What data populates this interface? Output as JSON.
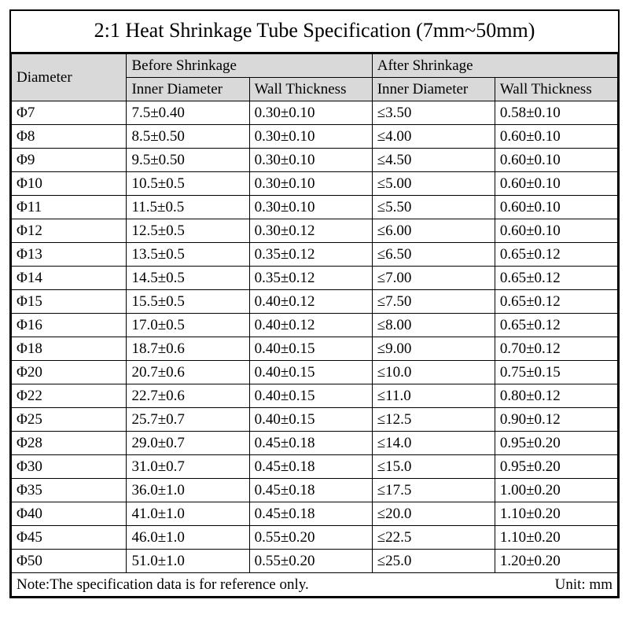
{
  "title": "2:1 Heat Shrinkage Tube Specification (7mm~50mm)",
  "headers": {
    "diameter": "Diameter",
    "before": "Before Shrinkage",
    "after": "After Shrinkage",
    "inner": "Inner Diameter",
    "wall": "Wall Thickness"
  },
  "note_left": "Note:The specification data is for reference only.",
  "note_right": "Unit: mm",
  "columns": [
    "diameter",
    "before_inner",
    "before_wall",
    "after_inner",
    "after_wall"
  ],
  "rows": [
    [
      "Φ7",
      "7.5±0.40",
      "0.30±0.10",
      "≤3.50",
      "0.58±0.10"
    ],
    [
      "Φ8",
      "8.5±0.50",
      "0.30±0.10",
      "≤4.00",
      "0.60±0.10"
    ],
    [
      "Φ9",
      "9.5±0.50",
      "0.30±0.10",
      "≤4.50",
      "0.60±0.10"
    ],
    [
      "Φ10",
      "10.5±0.5",
      "0.30±0.10",
      "≤5.00",
      "0.60±0.10"
    ],
    [
      "Φ11",
      "11.5±0.5",
      "0.30±0.10",
      "≤5.50",
      "0.60±0.10"
    ],
    [
      "Φ12",
      "12.5±0.5",
      "0.30±0.12",
      "≤6.00",
      "0.60±0.10"
    ],
    [
      "Φ13",
      "13.5±0.5",
      "0.35±0.12",
      "≤6.50",
      "0.65±0.12"
    ],
    [
      "Φ14",
      "14.5±0.5",
      "0.35±0.12",
      "≤7.00",
      "0.65±0.12"
    ],
    [
      "Φ15",
      "15.5±0.5",
      "0.40±0.12",
      "≤7.50",
      "0.65±0.12"
    ],
    [
      "Φ16",
      "17.0±0.5",
      "0.40±0.12",
      "≤8.00",
      "0.65±0.12"
    ],
    [
      "Φ18",
      "18.7±0.6",
      "0.40±0.15",
      "≤9.00",
      "0.70±0.12"
    ],
    [
      "Φ20",
      "20.7±0.6",
      "0.40±0.15",
      "≤10.0",
      "0.75±0.15"
    ],
    [
      "Φ22",
      "22.7±0.6",
      "0.40±0.15",
      "≤11.0",
      "0.80±0.12"
    ],
    [
      "Φ25",
      "25.7±0.7",
      "0.40±0.15",
      "≤12.5",
      "0.90±0.12"
    ],
    [
      "Φ28",
      "29.0±0.7",
      "0.45±0.18",
      "≤14.0",
      "0.95±0.20"
    ],
    [
      "Φ30",
      "31.0±0.7",
      "0.45±0.18",
      "≤15.0",
      "0.95±0.20"
    ],
    [
      "Φ35",
      "36.0±1.0",
      "0.45±0.18",
      "≤17.5",
      "1.00±0.20"
    ],
    [
      "Φ40",
      "41.0±1.0",
      "0.45±0.18",
      "≤20.0",
      "1.10±0.20"
    ],
    [
      "Φ45",
      "46.0±1.0",
      "0.55±0.20",
      "≤22.5",
      "1.10±0.20"
    ],
    [
      "Φ50",
      "51.0±1.0",
      "0.55±0.20",
      "≤25.0",
      "1.20±0.20"
    ]
  ],
  "styling": {
    "header_bg": "#d9d9d9",
    "border_color": "#000000",
    "font_family": "Times New Roman",
    "title_fontsize": 26,
    "cell_fontsize": 19,
    "col_widths_pct": [
      19,
      20.25,
      20.25,
      20.25,
      20.25
    ]
  }
}
